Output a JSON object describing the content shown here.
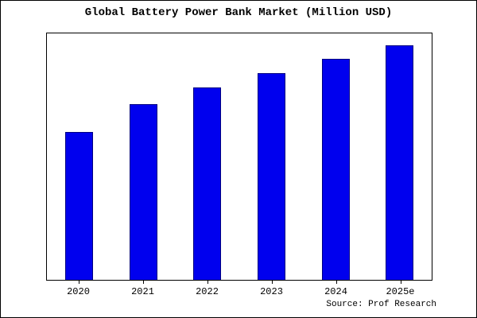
{
  "title": "Global Battery Power Bank Market (Million USD)",
  "source": "Source: Prof Research",
  "colors": {
    "bar_fill": "#0000EE",
    "bar_border": "#000080",
    "frame": "#000000",
    "background": "#FFFFFF"
  },
  "chart_data": {
    "type": "bar",
    "title": "Global Battery Power Bank Market (Million USD)",
    "categories": [
      "2020",
      "2021",
      "2022",
      "2023",
      "2024",
      "2025e"
    ],
    "values": [
      63,
      75,
      82,
      88,
      94,
      100
    ],
    "xlabel": "",
    "ylabel": "",
    "ylim": [
      0,
      105
    ],
    "grid": false,
    "legend": false,
    "y_axis_labels_visible": false,
    "annotation": "Source: Prof Research"
  }
}
